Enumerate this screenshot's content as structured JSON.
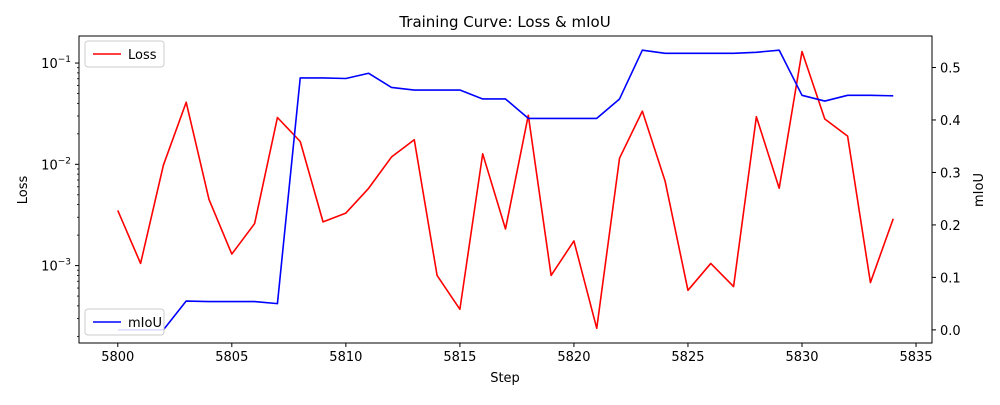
{
  "chart_data": {
    "type": "line",
    "title": "Training Curve: Loss & mIoU",
    "xlabel": "Step",
    "ylabel_left": "Loss",
    "ylabel_right": "mIoU",
    "xlim": [
      5798.3,
      5835.7
    ],
    "x_ticks": [
      5800,
      5805,
      5810,
      5815,
      5820,
      5825,
      5830,
      5835
    ],
    "x_tick_labels": [
      "5800",
      "5805",
      "5810",
      "5815",
      "5820",
      "5825",
      "5830",
      "5835"
    ],
    "y_left_scale": "log",
    "y_left_lim": [
      0.000172,
      0.185
    ],
    "y_left_ticks": [
      0.001,
      0.01,
      0.1
    ],
    "y_left_tick_labels": [
      "10",
      "10",
      "10"
    ],
    "y_left_tick_exps": [
      "−3",
      "−2",
      "−1"
    ],
    "y_right_lim": [
      -0.025,
      0.56
    ],
    "y_right_ticks": [
      0.0,
      0.1,
      0.2,
      0.3,
      0.4,
      0.5
    ],
    "y_right_tick_labels": [
      "0.0",
      "0.1",
      "0.2",
      "0.3",
      "0.4",
      "0.5"
    ],
    "grid": false,
    "x": [
      5800,
      5801,
      5802,
      5803,
      5804,
      5805,
      5806,
      5807,
      5808,
      5809,
      5810,
      5811,
      5812,
      5813,
      5814,
      5815,
      5816,
      5817,
      5818,
      5819,
      5820,
      5821,
      5822,
      5823,
      5824,
      5825,
      5826,
      5827,
      5828,
      5829,
      5830,
      5831,
      5832,
      5833,
      5834
    ],
    "series": [
      {
        "name": "Loss",
        "axis": "left",
        "color": "#ff0000",
        "legend_position": "upper-left",
        "values": [
          0.0035,
          0.00105,
          0.0098,
          0.041,
          0.0045,
          0.0013,
          0.0026,
          0.029,
          0.0168,
          0.0027,
          0.0033,
          0.0058,
          0.0118,
          0.0175,
          0.0008,
          0.00037,
          0.0127,
          0.0023,
          0.0305,
          0.0008,
          0.00175,
          0.00024,
          0.0115,
          0.0335,
          0.0068,
          0.00057,
          0.00105,
          0.00062,
          0.0295,
          0.0058,
          0.13,
          0.028,
          0.019,
          0.00068,
          0.0029
        ]
      },
      {
        "name": "mIoU",
        "axis": "right",
        "color": "#0000ff",
        "legend_position": "lower-left",
        "values": [
          0.0,
          0.0,
          0.0,
          0.055,
          0.054,
          0.054,
          0.054,
          0.05,
          0.48,
          0.48,
          0.479,
          0.489,
          0.462,
          0.457,
          0.457,
          0.457,
          0.44,
          0.44,
          0.403,
          0.403,
          0.403,
          0.403,
          0.44,
          0.533,
          0.527,
          0.527,
          0.527,
          0.527,
          0.529,
          0.533,
          0.447,
          0.436,
          0.447,
          0.447,
          0.446
        ]
      }
    ]
  }
}
